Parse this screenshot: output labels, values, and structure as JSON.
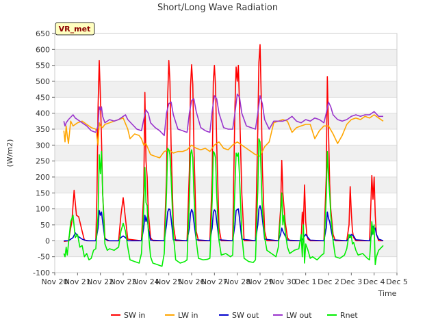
{
  "chart_data": {
    "type": "line",
    "title": "Short/Long Wave Radiation",
    "site_label": "VR_met",
    "xlabel": "Time",
    "ylabel": "(W/m2)",
    "x_ticks": [
      "Nov 20",
      "Nov 21",
      "Nov 22",
      "Nov 23",
      "Nov 24",
      "Nov 25",
      "Nov 26",
      "Nov 27",
      "Nov 28",
      "Nov 29",
      "Nov 30",
      "Dec 1",
      "Dec 2",
      "Dec 3",
      "Dec 4",
      "Dec 5"
    ],
    "y_ticks": [
      -100,
      -50,
      0,
      50,
      100,
      150,
      200,
      250,
      300,
      350,
      400,
      450,
      500,
      550,
      600,
      650
    ],
    "ylim": [
      -100,
      650
    ],
    "xlim": [
      0,
      15
    ],
    "grid": true,
    "legend_position": "bottom",
    "colors": {
      "SW in": "#ff0000",
      "LW in": "#ffa500",
      "SW out": "#0000cd",
      "LW out": "#9932cc",
      "Rnet": "#00ee00",
      "band": "#f0f0f0",
      "badge_bg": "#ffffc0"
    },
    "series": [
      {
        "name": "SW in",
        "x": [
          0.4,
          0.6,
          0.75,
          0.85,
          0.95,
          1.05,
          1.2,
          1.3,
          1.5,
          1.8,
          1.85,
          1.9,
          1.95,
          2.0,
          2.05,
          2.1,
          2.2,
          2.3,
          2.8,
          2.9,
          3.0,
          3.1,
          3.2,
          3.8,
          3.9,
          3.95,
          4.0,
          4.05,
          4.1,
          4.2,
          4.3,
          4.8,
          4.9,
          4.95,
          5.0,
          5.05,
          5.1,
          5.2,
          5.3,
          5.8,
          5.9,
          5.95,
          6.0,
          6.05,
          6.1,
          6.2,
          6.3,
          6.8,
          6.9,
          6.95,
          7.0,
          7.05,
          7.1,
          7.2,
          7.3,
          7.8,
          7.9,
          7.95,
          8.0,
          8.05,
          8.1,
          8.2,
          8.3,
          8.8,
          8.9,
          8.95,
          9.0,
          9.05,
          9.1,
          9.2,
          9.3,
          9.8,
          9.9,
          9.95,
          10.0,
          10.05,
          10.1,
          10.2,
          10.3,
          10.8,
          10.85,
          10.9,
          10.95,
          11.0,
          11.05,
          11.1,
          11.2,
          11.3,
          11.8,
          11.9,
          11.95,
          12.0,
          12.05,
          12.1,
          12.2,
          12.3,
          12.8,
          12.9,
          12.95,
          13.0,
          13.05,
          13.1,
          13.2,
          13.3,
          13.8,
          13.85,
          13.9,
          13.95,
          14.0,
          14.05,
          14.1,
          14.2,
          14.4
        ],
        "values": [
          -2,
          0,
          60,
          158,
          80,
          75,
          30,
          2,
          0,
          0,
          150,
          420,
          565,
          450,
          320,
          150,
          10,
          0,
          0,
          80,
          135,
          70,
          5,
          0,
          150,
          465,
          250,
          200,
          90,
          10,
          0,
          0,
          200,
          450,
          565,
          500,
          300,
          50,
          0,
          0,
          220,
          480,
          552,
          490,
          300,
          30,
          0,
          0,
          200,
          500,
          550,
          480,
          300,
          40,
          0,
          0,
          420,
          545,
          500,
          550,
          420,
          150,
          0,
          0,
          350,
          560,
          615,
          450,
          230,
          30,
          0,
          0,
          100,
          252,
          150,
          105,
          60,
          10,
          0,
          0,
          90,
          50,
          175,
          60,
          20,
          5,
          0,
          0,
          0,
          200,
          515,
          350,
          180,
          100,
          20,
          0,
          0,
          50,
          170,
          90,
          30,
          10,
          0,
          0,
          0,
          100,
          205,
          130,
          200,
          80,
          20,
          0,
          0
        ]
      },
      {
        "name": "LW in",
        "x": [
          0.4,
          0.45,
          0.5,
          0.55,
          0.6,
          0.7,
          0.8,
          1.0,
          1.2,
          1.4,
          1.6,
          1.8,
          1.9,
          1.95,
          2.0,
          2.1,
          2.2,
          2.4,
          2.6,
          2.8,
          3.0,
          3.2,
          3.3,
          3.5,
          3.7,
          3.8,
          3.9,
          4.0,
          4.2,
          4.4,
          4.6,
          4.8,
          5.0,
          5.2,
          5.4,
          5.6,
          5.8,
          6.0,
          6.2,
          6.4,
          6.6,
          6.8,
          7.0,
          7.2,
          7.4,
          7.6,
          7.8,
          8.0,
          8.2,
          8.4,
          8.6,
          8.8,
          9.0,
          9.2,
          9.4,
          9.6,
          9.8,
          10.0,
          10.2,
          10.4,
          10.6,
          10.8,
          11.0,
          11.2,
          11.4,
          11.6,
          11.8,
          12.0,
          12.2,
          12.4,
          12.6,
          12.8,
          13.0,
          13.2,
          13.4,
          13.6,
          13.8,
          14.0,
          14.2,
          14.4
        ],
        "values": [
          345,
          310,
          360,
          330,
          305,
          375,
          360,
          370,
          375,
          365,
          355,
          350,
          300,
          370,
          360,
          355,
          365,
          370,
          375,
          380,
          385,
          350,
          320,
          335,
          330,
          320,
          300,
          305,
          270,
          265,
          260,
          280,
          285,
          275,
          280,
          280,
          285,
          300,
          290,
          285,
          290,
          280,
          300,
          310,
          290,
          285,
          300,
          310,
          300,
          290,
          280,
          270,
          265,
          295,
          310,
          370,
          375,
          380,
          375,
          340,
          355,
          360,
          365,
          365,
          320,
          345,
          360,
          360,
          335,
          305,
          330,
          365,
          380,
          385,
          380,
          390,
          385,
          395,
          385,
          375
        ]
      },
      {
        "name": "SW out",
        "x": [
          0.4,
          0.6,
          0.8,
          0.9,
          1.0,
          1.2,
          1.4,
          1.6,
          1.8,
          1.9,
          1.95,
          2.0,
          2.05,
          2.1,
          2.2,
          2.4,
          2.8,
          2.9,
          3.0,
          3.1,
          3.2,
          3.8,
          3.9,
          3.95,
          4.0,
          4.05,
          4.1,
          4.2,
          4.8,
          4.9,
          4.95,
          5.0,
          5.05,
          5.1,
          5.2,
          5.8,
          5.9,
          5.95,
          6.0,
          6.05,
          6.1,
          6.2,
          6.8,
          6.9,
          6.95,
          7.0,
          7.05,
          7.1,
          7.2,
          7.8,
          7.9,
          7.95,
          8.0,
          8.05,
          8.1,
          8.2,
          8.8,
          8.9,
          8.95,
          9.0,
          9.05,
          9.1,
          9.2,
          9.8,
          9.9,
          9.95,
          10.0,
          10.1,
          10.2,
          10.8,
          10.9,
          11.0,
          11.1,
          11.2,
          11.8,
          11.9,
          11.95,
          12.0,
          12.05,
          12.1,
          12.2,
          12.8,
          12.9,
          13.0,
          13.1,
          13.2,
          13.8,
          13.9,
          13.95,
          14.0,
          14.05,
          14.1,
          14.2,
          14.4
        ],
        "values": [
          0,
          0,
          10,
          25,
          15,
          5,
          0,
          0,
          0,
          40,
          95,
          80,
          90,
          60,
          5,
          0,
          0,
          10,
          15,
          10,
          0,
          0,
          40,
          80,
          60,
          75,
          40,
          2,
          0,
          50,
          90,
          100,
          98,
          70,
          3,
          0,
          40,
          85,
          98,
          90,
          60,
          3,
          0,
          40,
          88,
          97,
          92,
          60,
          3,
          0,
          50,
          95,
          98,
          100,
          70,
          5,
          0,
          50,
          100,
          110,
          95,
          70,
          5,
          0,
          20,
          40,
          30,
          15,
          2,
          0,
          10,
          20,
          10,
          2,
          0,
          40,
          90,
          70,
          60,
          40,
          3,
          0,
          10,
          20,
          15,
          3,
          0,
          20,
          45,
          35,
          40,
          20,
          5,
          0
        ]
      },
      {
        "name": "LW out",
        "x": [
          0.4,
          0.45,
          0.5,
          0.6,
          0.8,
          0.9,
          1.0,
          1.2,
          1.4,
          1.6,
          1.8,
          1.9,
          1.95,
          2.0,
          2.05,
          2.1,
          2.2,
          2.4,
          2.6,
          2.8,
          3.0,
          3.1,
          3.2,
          3.4,
          3.6,
          3.8,
          3.9,
          4.0,
          4.1,
          4.2,
          4.4,
          4.6,
          4.8,
          4.9,
          5.0,
          5.1,
          5.2,
          5.4,
          5.6,
          5.8,
          5.9,
          6.0,
          6.1,
          6.2,
          6.4,
          6.6,
          6.8,
          6.9,
          7.0,
          7.1,
          7.2,
          7.4,
          7.6,
          7.8,
          7.9,
          8.0,
          8.1,
          8.2,
          8.4,
          8.6,
          8.8,
          8.9,
          9.0,
          9.1,
          9.2,
          9.4,
          9.6,
          9.8,
          10.0,
          10.2,
          10.4,
          10.6,
          10.8,
          11.0,
          11.2,
          11.4,
          11.6,
          11.8,
          11.9,
          12.0,
          12.1,
          12.2,
          12.4,
          12.6,
          12.8,
          13.0,
          13.2,
          13.4,
          13.6,
          13.8,
          14.0,
          14.2,
          14.4
        ],
        "values": [
          375,
          360,
          370,
          380,
          395,
          385,
          380,
          370,
          360,
          345,
          340,
          360,
          420,
          410,
          420,
          390,
          370,
          380,
          375,
          380,
          390,
          395,
          380,
          365,
          350,
          345,
          380,
          410,
          400,
          370,
          355,
          345,
          330,
          400,
          430,
          435,
          395,
          350,
          345,
          340,
          400,
          440,
          445,
          405,
          355,
          345,
          340,
          405,
          455,
          445,
          400,
          355,
          350,
          350,
          400,
          460,
          450,
          400,
          360,
          355,
          350,
          400,
          455,
          430,
          380,
          350,
          375,
          375,
          375,
          380,
          390,
          375,
          370,
          380,
          375,
          385,
          380,
          370,
          400,
          435,
          420,
          395,
          380,
          375,
          380,
          390,
          395,
          390,
          395,
          395,
          405,
          390,
          390
        ]
      },
      {
        "name": "Rnet",
        "x": [
          0.4,
          0.45,
          0.5,
          0.55,
          0.6,
          0.7,
          0.8,
          0.9,
          1.0,
          1.1,
          1.2,
          1.3,
          1.4,
          1.5,
          1.6,
          1.7,
          1.8,
          1.9,
          1.95,
          2.0,
          2.05,
          2.1,
          2.2,
          2.3,
          2.4,
          2.6,
          2.8,
          2.9,
          3.0,
          3.1,
          3.2,
          3.3,
          3.5,
          3.7,
          3.8,
          3.9,
          3.95,
          4.0,
          4.05,
          4.1,
          4.2,
          4.3,
          4.5,
          4.7,
          4.8,
          4.9,
          4.95,
          5.0,
          5.05,
          5.1,
          5.2,
          5.3,
          5.5,
          5.7,
          5.8,
          5.9,
          5.95,
          6.0,
          6.05,
          6.1,
          6.2,
          6.3,
          6.5,
          6.7,
          6.8,
          6.9,
          6.95,
          7.0,
          7.05,
          7.1,
          7.2,
          7.3,
          7.5,
          7.7,
          7.8,
          7.9,
          7.95,
          8.0,
          8.05,
          8.1,
          8.2,
          8.3,
          8.5,
          8.7,
          8.8,
          8.9,
          8.95,
          9.0,
          9.05,
          9.1,
          9.2,
          9.3,
          9.5,
          9.7,
          9.8,
          9.9,
          9.95,
          10.0,
          10.05,
          10.1,
          10.2,
          10.3,
          10.5,
          10.7,
          10.8,
          10.85,
          10.9,
          10.95,
          11.0,
          11.1,
          11.2,
          11.3,
          11.5,
          11.7,
          11.8,
          11.9,
          11.95,
          12.0,
          12.05,
          12.1,
          12.2,
          12.3,
          12.5,
          12.7,
          12.8,
          12.9,
          12.95,
          13.0,
          13.05,
          13.1,
          13.2,
          13.3,
          13.5,
          13.7,
          13.8,
          13.85,
          13.9,
          13.95,
          14.0,
          14.05,
          14.1,
          14.2,
          14.4
        ],
        "values": [
          -40,
          -50,
          -20,
          -45,
          -10,
          60,
          80,
          10,
          20,
          -20,
          -15,
          -50,
          -40,
          -60,
          -55,
          -30,
          -25,
          80,
          270,
          210,
          280,
          150,
          -10,
          -30,
          -25,
          -30,
          -20,
          30,
          55,
          30,
          -20,
          -60,
          -65,
          -70,
          -40,
          100,
          230,
          120,
          110,
          30,
          -50,
          -70,
          -75,
          -80,
          -40,
          150,
          290,
          285,
          270,
          200,
          20,
          -60,
          -70,
          -65,
          -60,
          130,
          270,
          285,
          260,
          150,
          0,
          -55,
          -60,
          -58,
          -55,
          125,
          280,
          275,
          260,
          140,
          0,
          -45,
          -40,
          -50,
          -45,
          170,
          275,
          265,
          275,
          200,
          20,
          -55,
          -65,
          -68,
          -60,
          160,
          320,
          310,
          200,
          100,
          10,
          -30,
          -40,
          -50,
          -20,
          80,
          150,
          50,
          80,
          30,
          -20,
          -40,
          -30,
          -25,
          20,
          -50,
          50,
          -70,
          -10,
          -30,
          -55,
          -50,
          -60,
          -45,
          -40,
          140,
          280,
          200,
          150,
          80,
          0,
          -50,
          -55,
          -45,
          -25,
          20,
          10,
          15,
          -10,
          -5,
          -30,
          -45,
          -40,
          -55,
          -60,
          0,
          60,
          20,
          50,
          -75,
          -50,
          -30,
          -15
        ]
      }
    ]
  }
}
